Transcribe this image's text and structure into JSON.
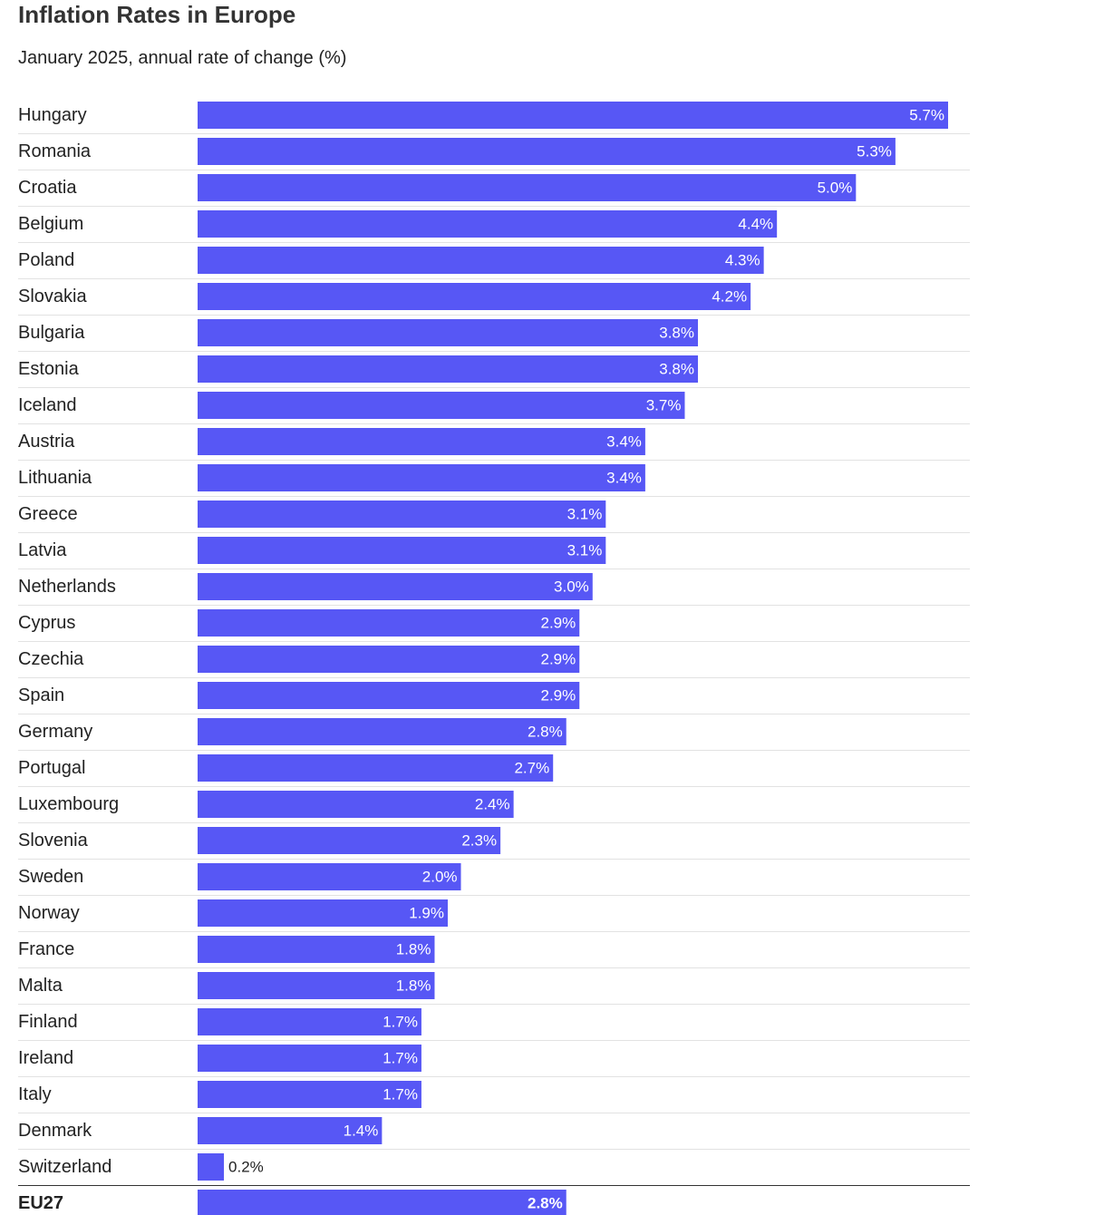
{
  "title": "Inflation Rates in Europe",
  "subtitle": "January 2025, annual rate of change (%)",
  "colors": {
    "bar": "#5757F5",
    "separator": "#e2e2e2",
    "total_separator": "#333333",
    "label_inside": "#ffffff",
    "label_outside": "#222222"
  },
  "chart_data": {
    "type": "bar",
    "orientation": "horizontal",
    "value_suffix": "%",
    "xlim": [
      0,
      5.7
    ],
    "categories": [
      "Hungary",
      "Romania",
      "Croatia",
      "Belgium",
      "Poland",
      "Slovakia",
      "Bulgaria",
      "Estonia",
      "Iceland",
      "Austria",
      "Lithuania",
      "Greece",
      "Latvia",
      "Netherlands",
      "Cyprus",
      "Czechia",
      "Spain",
      "Germany",
      "Portugal",
      "Luxembourg",
      "Slovenia",
      "Sweden",
      "Norway",
      "France",
      "Malta",
      "Finland",
      "Ireland",
      "Italy",
      "Denmark",
      "Switzerland"
    ],
    "values": [
      5.7,
      5.3,
      5.0,
      4.4,
      4.3,
      4.2,
      3.8,
      3.8,
      3.7,
      3.4,
      3.4,
      3.1,
      3.1,
      3.0,
      2.9,
      2.9,
      2.9,
      2.8,
      2.7,
      2.4,
      2.3,
      2.0,
      1.9,
      1.8,
      1.8,
      1.7,
      1.7,
      1.7,
      1.4,
      0.2
    ],
    "total": {
      "category": "EU27",
      "value": 2.8
    }
  }
}
